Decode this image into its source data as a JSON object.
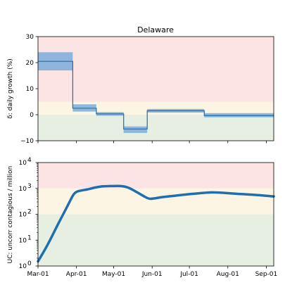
{
  "chart_data": [
    {
      "type": "line",
      "title": "Delaware",
      "ylabel": "δ: daily growth (%)",
      "ylim": [
        -10,
        30
      ],
      "yticks": [
        -10,
        0,
        10,
        20,
        30
      ],
      "ytick_labels": [
        "−10",
        "0",
        "10",
        "20",
        "30"
      ],
      "xlim_days": [
        0,
        190
      ],
      "zones": [
        {
          "from": -10,
          "to": 0,
          "color": "#e6efe1"
        },
        {
          "from": 0,
          "to": 5,
          "color": "#fcf5e4"
        },
        {
          "from": 5,
          "to": 30,
          "color": "#fce4e4"
        }
      ],
      "steps": [
        {
          "start": 0,
          "end": 28,
          "value": 20.5,
          "lo": 17,
          "hi": 24
        },
        {
          "start": 28,
          "end": 47,
          "value": 2.5,
          "lo": 1.2,
          "hi": 4
        },
        {
          "start": 47,
          "end": 69,
          "value": 0.3,
          "lo": -0.4,
          "hi": 1
        },
        {
          "start": 69,
          "end": 88,
          "value": -5.5,
          "lo": -7,
          "hi": -4.5
        },
        {
          "start": 88,
          "end": 134,
          "value": 1.5,
          "lo": 0.8,
          "hi": 2.2
        },
        {
          "start": 134,
          "end": 190,
          "value": -0.3,
          "lo": -1,
          "hi": 0.6
        }
      ]
    },
    {
      "type": "line",
      "ylabel": "UC: uncorr contagious / million",
      "yscale": "log",
      "ylim": [
        1,
        10000
      ],
      "yticks": [
        1,
        10,
        100,
        1000,
        10000
      ],
      "ytick_bases": [
        "10",
        "10",
        "10",
        "10",
        "10"
      ],
      "ytick_exps": [
        "0",
        "1",
        "2",
        "3",
        "4"
      ],
      "xlim_days": [
        0,
        190
      ],
      "xtick_days": [
        0,
        31,
        61,
        92,
        122,
        153,
        184
      ],
      "xtick_labels": [
        "Mar-01",
        "Apr-01",
        "May-01",
        "Jun-01",
        "Jul-01",
        "Aug-01",
        "Sep-01"
      ],
      "zones": [
        {
          "from": 1,
          "to": 100,
          "color": "#e6efe1"
        },
        {
          "from": 100,
          "to": 1000,
          "color": "#fcf5e4"
        },
        {
          "from": 1000,
          "to": 10000,
          "color": "#fce4e4"
        }
      ],
      "x": [
        0,
        8,
        16,
        24,
        28,
        30,
        32,
        36,
        40,
        46,
        52,
        58,
        64,
        68,
        72,
        76,
        80,
        86,
        90,
        95,
        100,
        110,
        120,
        130,
        140,
        150,
        160,
        170,
        180,
        190
      ],
      "y": [
        1.5,
        7,
        40,
        220,
        520,
        680,
        770,
        850,
        920,
        1080,
        1200,
        1230,
        1240,
        1220,
        1100,
        900,
        700,
        480,
        400,
        420,
        460,
        520,
        590,
        650,
        700,
        670,
        620,
        580,
        540,
        490
      ]
    }
  ]
}
